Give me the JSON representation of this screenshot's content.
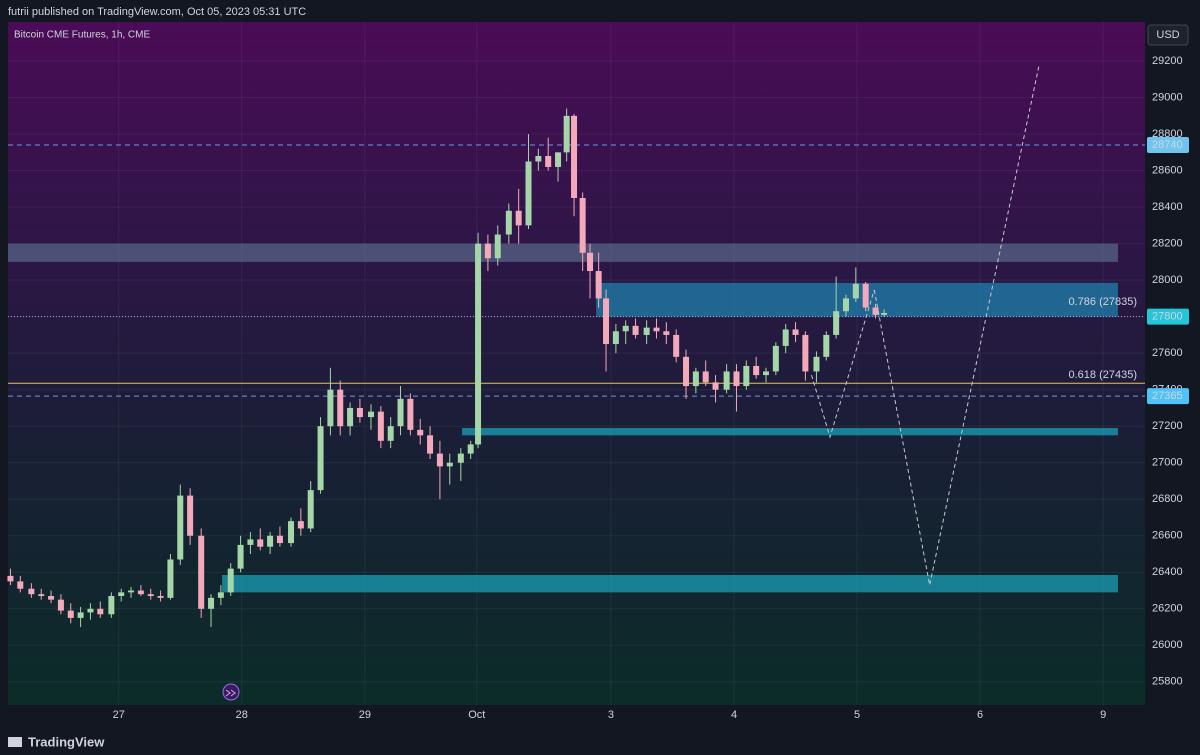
{
  "header": {
    "byline": "futrii published on TradingView.com, Oct 05, 2023 05:31 UTC"
  },
  "footer": {
    "brand": "TradingView"
  },
  "chart_data": {
    "type": "candlestick",
    "title": "Bitcoin CME Futures, 1h, CME",
    "currency": "USD",
    "up_color": "#a5d6a7",
    "down_color": "#f4a9bb",
    "xlim": [
      26.1,
      35.34
    ],
    "xticks": [
      {
        "value": 27,
        "label": "27"
      },
      {
        "value": 28,
        "label": "28"
      },
      {
        "value": 29,
        "label": "29"
      },
      {
        "value": 29.91,
        "label": "Oct"
      },
      {
        "value": 31,
        "label": "3"
      },
      {
        "value": 32,
        "label": "4"
      },
      {
        "value": 33,
        "label": "5"
      },
      {
        "value": 34,
        "label": "6"
      },
      {
        "value": 35,
        "label": "9"
      }
    ],
    "ylim": [
      25673,
      29414
    ],
    "yticks": [
      25800,
      26000,
      26200,
      26400,
      26600,
      26800,
      27000,
      27200,
      27400,
      27600,
      27800,
      28000,
      28200,
      28400,
      28600,
      28800,
      29000,
      29200
    ],
    "grid": true,
    "candles": [
      [
        26.12,
        26380,
        26420,
        26330,
        26350
      ],
      [
        26.2,
        26350,
        26380,
        26290,
        26310
      ],
      [
        26.29,
        26310,
        26340,
        26260,
        26280
      ],
      [
        26.37,
        26280,
        26310,
        26250,
        26270
      ],
      [
        26.45,
        26270,
        26300,
        26230,
        26250
      ],
      [
        26.53,
        26250,
        26280,
        26170,
        26190
      ],
      [
        26.61,
        26190,
        26230,
        26120,
        26150
      ],
      [
        26.69,
        26150,
        26210,
        26100,
        26180
      ],
      [
        26.77,
        26180,
        26230,
        26140,
        26200
      ],
      [
        26.85,
        26200,
        26240,
        26150,
        26170
      ],
      [
        26.94,
        26170,
        26290,
        26150,
        26270
      ],
      [
        27.02,
        26270,
        26310,
        26240,
        26290
      ],
      [
        27.1,
        26290,
        26320,
        26260,
        26300
      ],
      [
        27.18,
        26300,
        26330,
        26270,
        26280
      ],
      [
        27.26,
        26280,
        26310,
        26250,
        26270
      ],
      [
        27.34,
        26270,
        26300,
        26240,
        26260
      ],
      [
        27.42,
        26260,
        26500,
        26250,
        26470
      ],
      [
        27.5,
        26470,
        26880,
        26440,
        26820
      ],
      [
        27.58,
        26820,
        26860,
        26550,
        26600
      ],
      [
        27.67,
        26600,
        26640,
        26150,
        26200
      ],
      [
        27.75,
        26200,
        26280,
        26100,
        26260
      ],
      [
        27.83,
        26260,
        26330,
        26220,
        26290
      ],
      [
        27.91,
        26290,
        26450,
        26270,
        26420
      ],
      [
        27.99,
        26420,
        26600,
        26400,
        26550
      ],
      [
        28.07,
        26550,
        26620,
        26500,
        26580
      ],
      [
        28.15,
        26580,
        26640,
        26520,
        26540
      ],
      [
        28.23,
        26540,
        26620,
        26500,
        26600
      ],
      [
        28.31,
        26600,
        26650,
        26540,
        26560
      ],
      [
        28.4,
        26560,
        26700,
        26540,
        26680
      ],
      [
        28.48,
        26680,
        26750,
        26600,
        26640
      ],
      [
        28.56,
        26640,
        26900,
        26620,
        26850
      ],
      [
        28.64,
        26850,
        27250,
        26830,
        27200
      ],
      [
        28.72,
        27200,
        27520,
        27150,
        27400
      ],
      [
        28.8,
        27400,
        27450,
        27150,
        27200
      ],
      [
        28.88,
        27200,
        27330,
        27150,
        27300
      ],
      [
        28.96,
        27300,
        27350,
        27220,
        27250
      ],
      [
        29.05,
        27250,
        27320,
        27180,
        27280
      ],
      [
        29.13,
        27280,
        27310,
        27080,
        27120
      ],
      [
        29.21,
        27120,
        27250,
        27080,
        27200
      ],
      [
        29.29,
        27200,
        27420,
        27150,
        27350
      ],
      [
        29.37,
        27350,
        27380,
        27150,
        27180
      ],
      [
        29.45,
        27180,
        27240,
        27100,
        27150
      ],
      [
        29.53,
        27150,
        27200,
        27020,
        27050
      ],
      [
        29.61,
        27050,
        27120,
        26800,
        26980
      ],
      [
        29.69,
        26980,
        27050,
        26880,
        27000
      ],
      [
        29.78,
        27000,
        27080,
        26900,
        27050
      ],
      [
        29.86,
        27050,
        27120,
        27020,
        27100
      ],
      [
        29.92,
        27100,
        28260,
        27080,
        28200
      ],
      [
        30.0,
        28200,
        28250,
        28050,
        28120
      ],
      [
        30.08,
        28120,
        28300,
        28080,
        28250
      ],
      [
        30.17,
        28250,
        28420,
        28200,
        28380
      ],
      [
        30.25,
        28380,
        28500,
        28200,
        28300
      ],
      [
        30.33,
        28300,
        28800,
        28280,
        28650
      ],
      [
        30.41,
        28650,
        28720,
        28600,
        28680
      ],
      [
        30.49,
        28680,
        28780,
        28600,
        28620
      ],
      [
        30.57,
        28620,
        28700,
        28540,
        28700
      ],
      [
        30.64,
        28700,
        28940,
        28650,
        28900
      ],
      [
        30.7,
        28900,
        28910,
        28350,
        28450
      ],
      [
        30.77,
        28450,
        28480,
        28050,
        28150
      ],
      [
        30.83,
        28150,
        28200,
        27900,
        28050
      ],
      [
        30.9,
        28050,
        28150,
        27850,
        27900
      ],
      [
        30.96,
        27900,
        27950,
        27500,
        27650
      ],
      [
        31.04,
        27650,
        27760,
        27600,
        27720
      ],
      [
        31.12,
        27720,
        27780,
        27650,
        27750
      ],
      [
        31.2,
        27750,
        27790,
        27680,
        27700
      ],
      [
        31.29,
        27700,
        27780,
        27650,
        27740
      ],
      [
        31.37,
        27740,
        27790,
        27680,
        27720
      ],
      [
        31.45,
        27720,
        27770,
        27650,
        27700
      ],
      [
        31.53,
        27700,
        27730,
        27550,
        27580
      ],
      [
        31.61,
        27580,
        27620,
        27350,
        27420
      ],
      [
        31.69,
        27420,
        27520,
        27380,
        27500
      ],
      [
        31.77,
        27500,
        27560,
        27420,
        27440
      ],
      [
        31.85,
        27440,
        27480,
        27330,
        27400
      ],
      [
        31.94,
        27400,
        27540,
        27380,
        27500
      ],
      [
        32.02,
        27500,
        27540,
        27280,
        27420
      ],
      [
        32.1,
        27420,
        27560,
        27400,
        27530
      ],
      [
        32.18,
        27530,
        27580,
        27460,
        27480
      ],
      [
        32.26,
        27480,
        27520,
        27440,
        27500
      ],
      [
        32.34,
        27500,
        27660,
        27480,
        27640
      ],
      [
        32.42,
        27640,
        27760,
        27600,
        27730
      ],
      [
        32.5,
        27730,
        27770,
        27660,
        27700
      ],
      [
        32.58,
        27700,
        27720,
        27450,
        27500
      ],
      [
        32.67,
        27500,
        27610,
        27440,
        27580
      ],
      [
        32.75,
        27580,
        27720,
        27560,
        27700
      ],
      [
        32.83,
        27700,
        28020,
        27680,
        27830
      ],
      [
        32.91,
        27830,
        27920,
        27800,
        27900
      ],
      [
        32.99,
        27900,
        28070,
        27880,
        27980
      ],
      [
        33.07,
        27980,
        27990,
        27830,
        27850
      ],
      [
        33.15,
        27850,
        27870,
        27790,
        27810
      ],
      [
        33.22,
        27810,
        27840,
        27800,
        27820
      ]
    ],
    "zones": [
      {
        "x": [
          26.1,
          35.12
        ],
        "y": [
          28100,
          28200
        ],
        "color": "#5a6a8a"
      },
      {
        "x": [
          30.88,
          35.12
        ],
        "y": [
          27800,
          27985
        ],
        "color": "#1e88b4"
      },
      {
        "x": [
          29.79,
          35.12
        ],
        "y": [
          27150,
          27190
        ],
        "color": "#1aa7c0"
      },
      {
        "x": [
          27.84,
          35.12
        ],
        "y": [
          26290,
          26385
        ],
        "color": "#1aa7c0"
      }
    ],
    "price_lines": [
      {
        "value": 28740,
        "style": "dashed",
        "color": "#6c9be0",
        "badge": "#6ec6f0"
      },
      {
        "value": 27800,
        "style": "dotted",
        "color": "#b0a0d0",
        "badge": "#26c6da"
      },
      {
        "value": 27365,
        "style": "dashed",
        "color": "#6c9be0",
        "badge": "#4fc3f7"
      }
    ],
    "fib_levels": [
      {
        "label": "0.786 (27835)",
        "value": 27835,
        "color": "#3a8fe0",
        "line": false
      },
      {
        "label": "0.618 (27435)",
        "value": 27435,
        "color": "#e6c850",
        "line": true
      }
    ],
    "projections": [
      [
        [
          32.63,
          27480
        ],
        [
          32.78,
          27141
        ],
        [
          33.14,
          27946
        ]
      ],
      [
        [
          33.14,
          27946
        ],
        [
          33.59,
          26330
        ],
        [
          34.48,
          29180
        ]
      ]
    ]
  }
}
